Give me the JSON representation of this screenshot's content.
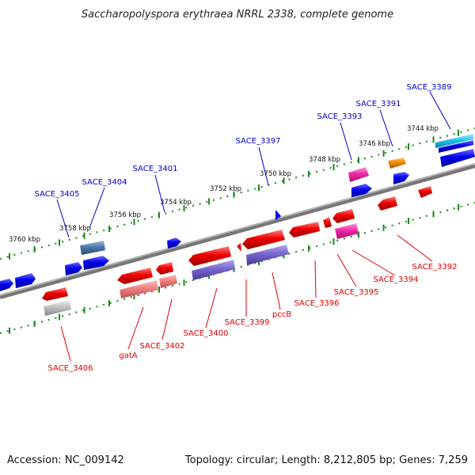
{
  "title": "Saccharopolyspora erythraea NRRL 2338, complete genome",
  "footer": {
    "accession": "Accession: NC_009142",
    "summary": "Topology: circular; Length: 8,212,805 bp; Genes: 7,259"
  },
  "scale_labels": [
    "3744 kbp",
    "3746 kbp",
    "3748 kbp",
    "3750 kbp",
    "3752 kbp",
    "3754 kbp",
    "3756 kbp",
    "3758 kbp",
    "3760 kbp"
  ],
  "upper_labels": [
    "SACE_3389",
    "SACE_3391",
    "SACE_3393",
    "SACE_3397",
    "SACE_3401",
    "SACE_3404",
    "SACE_3405"
  ],
  "lower_labels": [
    "SACE_3392",
    "SACE_3394",
    "SACE_3395",
    "SACE_3396",
    "pccB",
    "SACE_3399",
    "SACE_3400",
    "SACE_3402",
    "gatA",
    "SACE_3406"
  ],
  "colors": {
    "backbone": "#808080",
    "scale_ticks": "#1a8a1a",
    "forward_gene": "#0000ee",
    "reverse_gene": "#ee0000",
    "label_upper": "#0000cc",
    "label_lower": "#dd0000"
  }
}
